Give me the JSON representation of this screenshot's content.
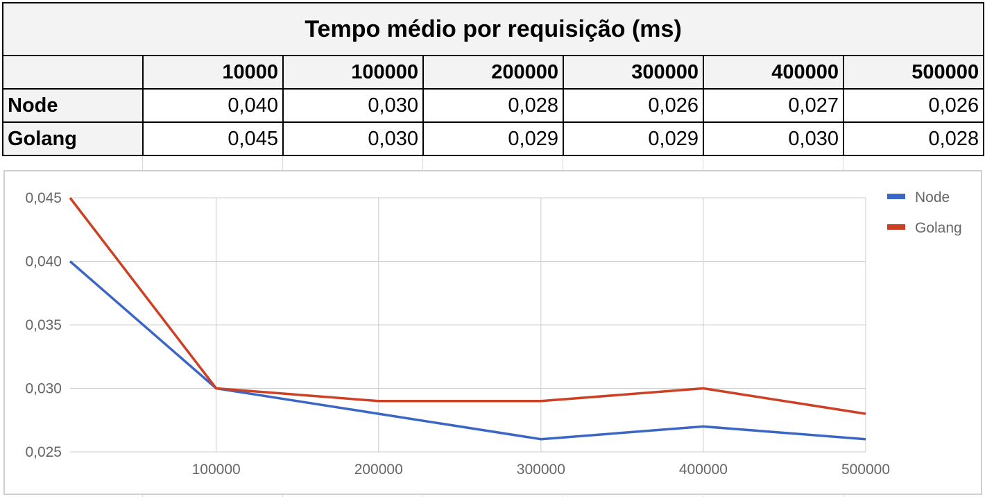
{
  "table": {
    "title": "Tempo médio por requisição (ms)",
    "headers": [
      "10000",
      "100000",
      "200000",
      "300000",
      "400000",
      "500000"
    ],
    "rows": [
      {
        "label": "Node",
        "values": [
          "0,040",
          "0,030",
          "0,028",
          "0,026",
          "0,027",
          "0,026"
        ]
      },
      {
        "label": "Golang",
        "values": [
          "0,045",
          "0,030",
          "0,029",
          "0,029",
          "0,030",
          "0,028"
        ]
      }
    ]
  },
  "chart_data": {
    "type": "line",
    "x": [
      10000,
      100000,
      200000,
      300000,
      400000,
      500000
    ],
    "x_tick_labels": [
      "100000",
      "200000",
      "300000",
      "400000",
      "500000"
    ],
    "y_tick_labels": [
      "0,045",
      "0,040",
      "0,035",
      "0,030",
      "0,025"
    ],
    "ylim": [
      0.025,
      0.045
    ],
    "grid": true,
    "legend_position": "top-right",
    "series": [
      {
        "name": "Node",
        "color": "#3c66c4",
        "values": [
          0.04,
          0.03,
          0.028,
          0.026,
          0.027,
          0.026
        ]
      },
      {
        "name": "Golang",
        "color": "#cc4125",
        "values": [
          0.045,
          0.03,
          0.029,
          0.029,
          0.03,
          0.028
        ]
      }
    ]
  }
}
